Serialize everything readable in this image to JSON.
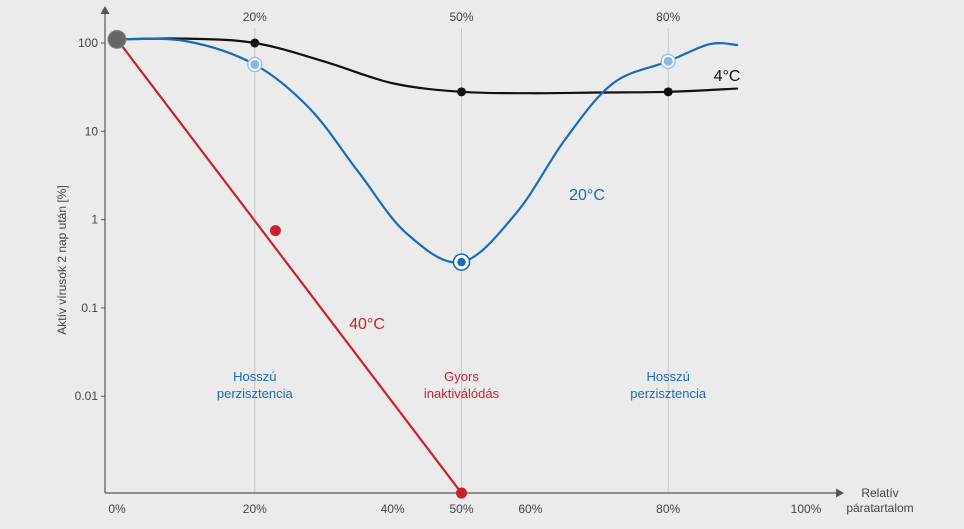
{
  "chart_data": {
    "type": "line",
    "title": "",
    "ylabel": "Aktív vírusok 2 nap után [%]",
    "xlabel_lines": [
      "Relatív",
      "páratartalom"
    ],
    "y_scale": "log",
    "ylim": [
      0.0008,
      120
    ],
    "xlim": [
      0,
      100
    ],
    "y_ticks": [
      {
        "value": 100,
        "label": "100"
      },
      {
        "value": 10,
        "label": "10"
      },
      {
        "value": 1,
        "label": "1"
      },
      {
        "value": 0.1,
        "label": "0.1"
      },
      {
        "value": 0.01,
        "label": "0.01"
      }
    ],
    "x_ticks": [
      {
        "value": 0,
        "label": "0%"
      },
      {
        "value": 20,
        "label": "20%"
      },
      {
        "value": 40,
        "label": "40%"
      },
      {
        "value": 50,
        "label": "50%"
      },
      {
        "value": 60,
        "label": "60%"
      },
      {
        "value": 80,
        "label": "80%"
      },
      {
        "value": 100,
        "label": "100%"
      }
    ],
    "grid_lines": [
      {
        "value": 20,
        "label": "20%"
      },
      {
        "value": 50,
        "label": "50%"
      },
      {
        "value": 80,
        "label": "80%"
      }
    ],
    "series": [
      {
        "name": "4°C",
        "color": "#111111",
        "points": [
          [
            0,
            110
          ],
          [
            20,
            100
          ],
          [
            50,
            28
          ],
          [
            80,
            28
          ]
        ],
        "curve": [
          [
            0,
            110
          ],
          [
            10,
            112
          ],
          [
            20,
            100
          ],
          [
            30,
            62
          ],
          [
            40,
            35
          ],
          [
            50,
            28
          ],
          [
            60,
            27
          ],
          [
            70,
            27.5
          ],
          [
            80,
            28
          ],
          [
            90,
            30.5
          ]
        ]
      },
      {
        "name": "20°C",
        "color": "#1a6bb5",
        "points": [
          [
            20,
            57
          ],
          [
            50,
            0.33
          ],
          [
            80,
            62
          ]
        ],
        "curve": [
          [
            0,
            110
          ],
          [
            10,
            105
          ],
          [
            20,
            57
          ],
          [
            28,
            18
          ],
          [
            35,
            3.5
          ],
          [
            42,
            0.7
          ],
          [
            50,
            0.33
          ],
          [
            58,
            1.2
          ],
          [
            65,
            8
          ],
          [
            72,
            35
          ],
          [
            80,
            62
          ],
          [
            86,
            97
          ],
          [
            90,
            95
          ]
        ]
      },
      {
        "name": "40°C",
        "color": "#c8232c",
        "points": [
          [
            23,
            0.75
          ],
          [
            50,
            0.0008
          ]
        ],
        "curve": [
          [
            0,
            110
          ],
          [
            50,
            0.0008
          ]
        ]
      }
    ],
    "start_point": {
      "x": 0,
      "y": 110,
      "color": "#666666"
    },
    "annotations": [
      {
        "lines": [
          "Hosszú",
          "perzisztencia"
        ],
        "x": 20,
        "color": "#1a6bb5"
      },
      {
        "lines": [
          "Gyors",
          "inaktiválódás"
        ],
        "x": 50,
        "color": "#c8232c"
      },
      {
        "lines": [
          "Hosszú",
          "perzisztencia"
        ],
        "x": 80,
        "color": "#1a6bb5"
      }
    ]
  }
}
